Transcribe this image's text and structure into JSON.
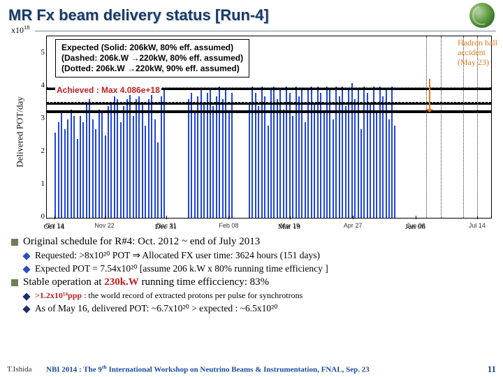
{
  "title": "MR Fx beam delivery status [Run-4]",
  "chart": {
    "type": "bar",
    "exp_label": "x10",
    "exp_power": "18",
    "ylabel": "Delivered POT/day",
    "ylim": [
      0,
      5.5
    ],
    "yticks": [
      0,
      1,
      2,
      3,
      4,
      5
    ],
    "xticks": [
      {
        "pos": 0.018,
        "label": "Oct 14"
      },
      {
        "pos": 0.27,
        "label": "Dec 31"
      },
      {
        "pos": 0.548,
        "label": "Mar 19"
      },
      {
        "pos": 0.832,
        "label": "Jun 06"
      }
    ],
    "minor_xticks": [
      {
        "pos": 0.018,
        "label": "Oct 14"
      },
      {
        "pos": 0.13,
        "label": "Nov 22"
      },
      {
        "pos": 0.27,
        "label": "Dec 31"
      },
      {
        "pos": 0.41,
        "label": "Feb 08"
      },
      {
        "pos": 0.548,
        "label": "Mar 19"
      },
      {
        "pos": 0.69,
        "label": "Apr 27"
      },
      {
        "pos": 0.832,
        "label": "Jun 06"
      },
      {
        "pos": 0.97,
        "label": "Jul 14"
      }
    ],
    "legend": {
      "l1": "Expected (Solid: 206kW, 80% eff. assumed)",
      "l2": "(Dashed: 206k.W →220kW, 80% eff. assumed)",
      "l3": "(Dotted: 206k.W →220kW, 90% eff. assumed)"
    },
    "achieved": "Achieved : Max 4.086e+18",
    "hadron": {
      "l1": "Hadron hall",
      "l2": "accident",
      "l3": "(May 23)"
    },
    "reflines": [
      {
        "y": 3.25,
        "style": "solid"
      },
      {
        "y": 3.5,
        "style": "dashed"
      },
      {
        "y": 3.95,
        "style": "dotted"
      }
    ],
    "vlines": [
      0.855,
      0.888,
      0.938,
      0.97
    ],
    "bar_color": "#1f46d8",
    "series": [
      [
        0.018,
        2.6
      ],
      [
        0.025,
        2.9
      ],
      [
        0.032,
        3.2
      ],
      [
        0.039,
        2.7
      ],
      [
        0.046,
        3.0
      ],
      [
        0.053,
        3.3
      ],
      [
        0.06,
        3.1
      ],
      [
        0.067,
        2.4
      ],
      [
        0.074,
        3.1
      ],
      [
        0.081,
        2.9
      ],
      [
        0.088,
        3.5
      ],
      [
        0.095,
        3.6
      ],
      [
        0.102,
        3.0
      ],
      [
        0.109,
        2.7
      ],
      [
        0.116,
        3.3
      ],
      [
        0.123,
        3.2
      ],
      [
        0.13,
        2.5
      ],
      [
        0.137,
        3.4
      ],
      [
        0.144,
        3.5
      ],
      [
        0.151,
        3.7
      ],
      [
        0.158,
        3.6
      ],
      [
        0.165,
        2.9
      ],
      [
        0.172,
        3.4
      ],
      [
        0.179,
        3.6
      ],
      [
        0.186,
        3.8
      ],
      [
        0.193,
        3.1
      ],
      [
        0.2,
        3.6
      ],
      [
        0.207,
        3.7
      ],
      [
        0.214,
        3.5
      ],
      [
        0.221,
        2.8
      ],
      [
        0.228,
        3.6
      ],
      [
        0.235,
        3.8
      ],
      [
        0.242,
        3.0
      ],
      [
        0.249,
        2.3
      ],
      [
        0.256,
        3.7
      ],
      [
        0.263,
        3.9
      ],
      [
        0.318,
        3.6
      ],
      [
        0.325,
        3.8
      ],
      [
        0.332,
        3.2
      ],
      [
        0.339,
        3.7
      ],
      [
        0.346,
        3.9
      ],
      [
        0.353,
        3.5
      ],
      [
        0.36,
        3.8
      ],
      [
        0.367,
        3.9
      ],
      [
        0.374,
        3.4
      ],
      [
        0.381,
        3.7
      ],
      [
        0.388,
        4.0
      ],
      [
        0.395,
        3.6
      ],
      [
        0.402,
        3.9
      ],
      [
        0.409,
        3.2
      ],
      [
        0.416,
        3.8
      ],
      [
        0.455,
        3.5
      ],
      [
        0.462,
        4.0
      ],
      [
        0.469,
        3.8
      ],
      [
        0.476,
        3.4
      ],
      [
        0.483,
        4.0
      ],
      [
        0.49,
        3.7
      ],
      [
        0.497,
        2.8
      ],
      [
        0.504,
        3.9
      ],
      [
        0.511,
        4.0
      ],
      [
        0.518,
        3.6
      ],
      [
        0.525,
        3.9
      ],
      [
        0.532,
        3.3
      ],
      [
        0.539,
        4.0
      ],
      [
        0.546,
        3.8
      ],
      [
        0.553,
        3.1
      ],
      [
        0.56,
        4.0
      ],
      [
        0.567,
        3.7
      ],
      [
        0.574,
        3.9
      ],
      [
        0.581,
        2.9
      ],
      [
        0.588,
        3.9
      ],
      [
        0.595,
        4.0
      ],
      [
        0.602,
        3.5
      ],
      [
        0.609,
        4.0
      ],
      [
        0.616,
        3.8
      ],
      [
        0.623,
        3.2
      ],
      [
        0.63,
        4.0
      ],
      [
        0.637,
        3.9
      ],
      [
        0.644,
        3.0
      ],
      [
        0.651,
        4.0
      ],
      [
        0.658,
        3.7
      ],
      [
        0.665,
        4.0
      ],
      [
        0.672,
        3.4
      ],
      [
        0.679,
        3.9
      ],
      [
        0.686,
        4.1
      ],
      [
        0.693,
        3.6
      ],
      [
        0.7,
        3.9
      ],
      [
        0.707,
        2.7
      ],
      [
        0.714,
        4.0
      ],
      [
        0.721,
        3.8
      ],
      [
        0.728,
        3.5
      ],
      [
        0.735,
        4.0
      ],
      [
        0.742,
        3.2
      ],
      [
        0.749,
        4.0
      ],
      [
        0.756,
        3.7
      ],
      [
        0.763,
        3.9
      ],
      [
        0.77,
        3.0
      ],
      [
        0.777,
        4.0
      ],
      [
        0.782,
        2.8
      ]
    ]
  },
  "schedule_line": "Original schedule for R#4: Oct. 2012 ~ end of July 2013",
  "requested_line": "Requested: >8x10²⁰ POT  ⇒   Allocated FX user time: 3624 hours (151 days)",
  "expected_line": "Expected POT  = 7.54x10²⁰ [assume 206 k.W x 80% running time efficiency ]",
  "stable_prefix": "Stable operation at ",
  "stable_kw": "230k.W",
  "stable_suffix": "   running time efficciency: 83%",
  "record_prefix": ">1.2x10¹⁴ppp",
  "record_rest": " : the world record of extracted protons per pulse for synchrotrons",
  "asof_line": "As of May 16, delivered POT: ~6.7x10²⁰  >  expected : ~6.5x10²⁰",
  "footer": {
    "name": "T.Ishida",
    "conf_a": "NBI 2014 : The 9",
    "conf_sup": "th",
    "conf_b": " International Workshop on Neutrino Beams & Instrumentation, FNAL, Sep. 23",
    "page": "11"
  },
  "colors": {
    "sq": "#6b7f55",
    "diam_blue": "#2b4fbf",
    "diam_dark": "#1a2e70",
    "accent": "#c02020"
  }
}
